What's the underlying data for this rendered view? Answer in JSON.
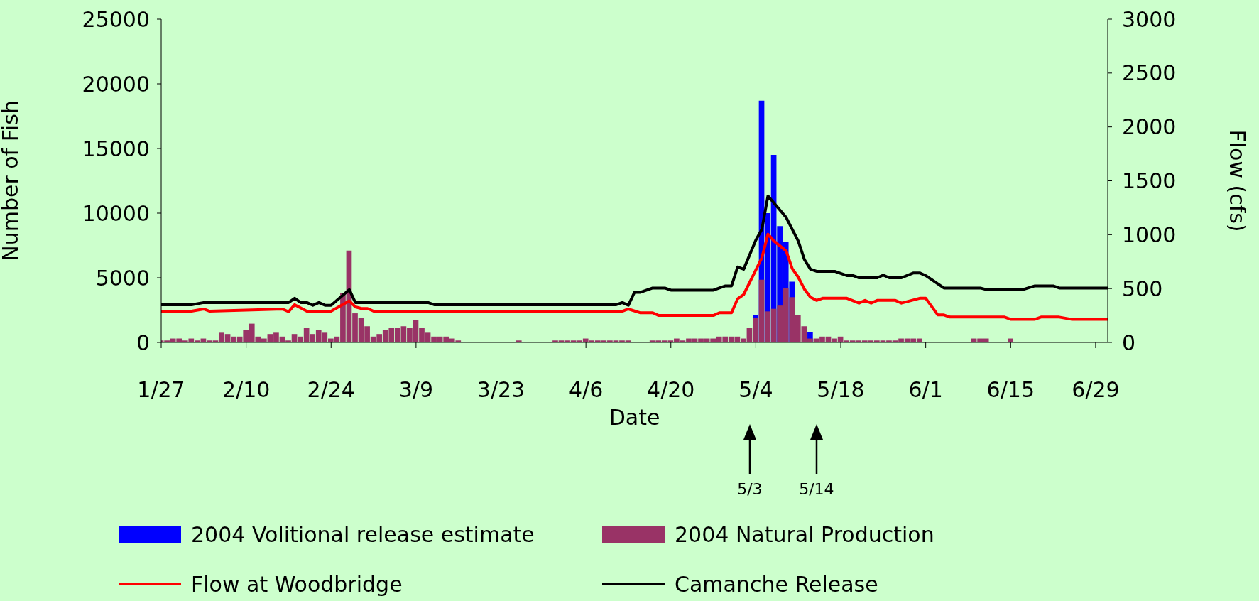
{
  "chart_data": {
    "type": "bar",
    "xlabel": "Date",
    "ylabel": "Number of Fish",
    "y2label": "Flow (cfs)",
    "legend": "bottom",
    "x": [
      "--01-27",
      "--01-28",
      "--01-29",
      "--01-30",
      "--01-31",
      "--02-01",
      "--02-02",
      "--02-03",
      "--02-04",
      "--02-05",
      "--02-06",
      "--02-07",
      "--02-08",
      "--02-09",
      "--02-10",
      "--02-11",
      "--02-12",
      "--02-13",
      "--02-14",
      "--02-15",
      "--02-16",
      "--02-17",
      "--02-18",
      "--02-19",
      "--02-20",
      "--02-21",
      "--02-22",
      "--02-23",
      "--02-24",
      "--02-25",
      "--02-26",
      "--02-27",
      "--02-28",
      "--02-29",
      "--03-01",
      "--03-02",
      "--03-03",
      "--03-04",
      "--03-05",
      "--03-06",
      "--03-07",
      "--03-08",
      "--03-09",
      "--03-10",
      "--03-11",
      "--03-12",
      "--03-13",
      "--03-14",
      "--03-15",
      "--03-16",
      "--03-17",
      "--03-18",
      "--03-19",
      "--03-20",
      "--03-21",
      "--03-22",
      "--03-23",
      "--03-24",
      "--03-25",
      "--03-26",
      "--03-27",
      "--03-28",
      "--03-29",
      "--03-30",
      "--03-31",
      "--04-01",
      "--04-02",
      "--04-03",
      "--04-04",
      "--04-05",
      "--04-06",
      "--04-07",
      "--04-08",
      "--04-09",
      "--04-10",
      "--04-11",
      "--04-12",
      "--04-13",
      "--04-14",
      "--04-15",
      "--04-16",
      "--04-17",
      "--04-18",
      "--04-19",
      "--04-20",
      "--04-21",
      "--04-22",
      "--04-23",
      "--04-24",
      "--04-25",
      "--04-26",
      "--04-27",
      "--04-28",
      "--04-29",
      "--04-30",
      "--05-01",
      "--05-02",
      "--05-03",
      "--05-04",
      "--05-05",
      "--05-06",
      "--05-07",
      "--05-08",
      "--05-09",
      "--05-10",
      "--05-11",
      "--05-12",
      "--05-13",
      "--05-14",
      "--05-15",
      "--05-16",
      "--05-17",
      "--05-18",
      "--05-19",
      "--05-20",
      "--05-21",
      "--05-22",
      "--05-23",
      "--05-24",
      "--05-25",
      "--05-26",
      "--05-27",
      "--05-28",
      "--05-29",
      "--05-30",
      "--05-31",
      "--06-01",
      "--06-02",
      "--06-03",
      "--06-04",
      "--06-05",
      "--06-06",
      "--06-07",
      "--06-08",
      "--06-09",
      "--06-10",
      "--06-11",
      "--06-12",
      "--06-13",
      "--06-14",
      "--06-15",
      "--06-16",
      "--06-17",
      "--06-18",
      "--06-19",
      "--06-20",
      "--06-21",
      "--06-22",
      "--06-23",
      "--06-24",
      "--06-25",
      "--06-26",
      "--06-27",
      "--06-28",
      "--06-29",
      "--06-30",
      "--07-01"
    ],
    "xlim": [
      "--01-27",
      "--07-01"
    ],
    "xticks": [
      {
        "value": "--01-27",
        "label": "1/27"
      },
      {
        "value": "--02-10",
        "label": "2/10"
      },
      {
        "value": "--02-24",
        "label": "2/24"
      },
      {
        "value": "--03-09",
        "label": "3/9"
      },
      {
        "value": "--03-23",
        "label": "3/23"
      },
      {
        "value": "--04-06",
        "label": "4/6"
      },
      {
        "value": "--04-20",
        "label": "4/20"
      },
      {
        "value": "--05-04",
        "label": "5/4"
      },
      {
        "value": "--05-18",
        "label": "5/18"
      },
      {
        "value": "--06-01",
        "label": "6/1"
      },
      {
        "value": "--06-15",
        "label": "6/15"
      },
      {
        "value": "--06-29",
        "label": "6/29"
      }
    ],
    "ylim": [
      0,
      25000
    ],
    "yticks": [
      0,
      5000,
      10000,
      15000,
      20000,
      25000
    ],
    "y2lim": [
      0,
      3000
    ],
    "y2ticks": [
      0,
      500,
      1000,
      1500,
      2000,
      2500,
      3000
    ],
    "series": [
      {
        "name": "2004 Volitional release estimate",
        "color": "#0000ff",
        "values": [
          0,
          0,
          0,
          0,
          0,
          0,
          0,
          0,
          0,
          0,
          0,
          0,
          0,
          0,
          0,
          0,
          0,
          0,
          0,
          0,
          0,
          0,
          0,
          0,
          0,
          0,
          0,
          0,
          0,
          0,
          0,
          0,
          0,
          0,
          0,
          0,
          0,
          0,
          0,
          0,
          0,
          0,
          0,
          0,
          0,
          0,
          0,
          0,
          0,
          0,
          0,
          0,
          0,
          0,
          0,
          0,
          0,
          0,
          0,
          0,
          0,
          0,
          0,
          0,
          0,
          0,
          0,
          0,
          0,
          0,
          0,
          0,
          0,
          0,
          0,
          0,
          0,
          0,
          0,
          0,
          0,
          0,
          0,
          0,
          0,
          0,
          0,
          0,
          0,
          0,
          0,
          0,
          0,
          0,
          0,
          0,
          0,
          0,
          2100,
          18700,
          10000,
          14500,
          9000,
          7800,
          4700,
          0,
          0,
          800,
          0,
          0,
          0,
          0,
          0,
          0,
          0,
          0,
          0,
          0,
          0,
          0,
          0,
          0,
          0,
          0,
          0,
          0,
          0,
          0,
          0,
          0,
          0,
          0,
          0,
          0,
          0,
          0,
          0,
          0,
          0,
          0,
          0,
          0,
          0,
          0,
          0,
          0,
          0,
          0,
          0,
          0,
          0,
          0,
          0,
          0,
          0,
          0,
          0
        ]
      },
      {
        "name": "2004 Natural Production",
        "color": "#993366",
        "values": [
          150,
          150,
          300,
          300,
          150,
          300,
          150,
          300,
          150,
          150,
          750,
          650,
          450,
          450,
          950,
          1450,
          450,
          300,
          650,
          750,
          450,
          150,
          650,
          450,
          1100,
          650,
          950,
          750,
          300,
          450,
          3800,
          7100,
          2250,
          1900,
          1250,
          450,
          650,
          950,
          1100,
          1100,
          1250,
          1100,
          1750,
          1100,
          750,
          450,
          450,
          450,
          300,
          150,
          0,
          0,
          0,
          0,
          0,
          0,
          0,
          0,
          0,
          150,
          0,
          0,
          0,
          0,
          0,
          150,
          150,
          150,
          150,
          150,
          300,
          150,
          150,
          150,
          150,
          150,
          150,
          150,
          0,
          0,
          0,
          150,
          150,
          150,
          150,
          300,
          150,
          300,
          300,
          300,
          300,
          300,
          450,
          450,
          450,
          450,
          300,
          1100,
          1900,
          4850,
          2400,
          2600,
          2850,
          4200,
          3500,
          2100,
          1250,
          300,
          300,
          450,
          450,
          300,
          450,
          150,
          150,
          150,
          150,
          150,
          150,
          150,
          150,
          150,
          300,
          300,
          300,
          300,
          0,
          0,
          0,
          0,
          0,
          0,
          0,
          0,
          300,
          300,
          300,
          0,
          0,
          0,
          300,
          0,
          0,
          0,
          0,
          0,
          0,
          0,
          0,
          0,
          0,
          0,
          0,
          0,
          0,
          0,
          0
        ]
      },
      {
        "type": "line",
        "axis": "y2",
        "name": "Flow at Woodbridge",
        "color": "#ff0000",
        "x": [
          "--01-27",
          "--02-01",
          "--02-03",
          "--02-04",
          "--02-16",
          "--02-17",
          "--02-18",
          "--02-19",
          "--02-20",
          "--02-24",
          "--02-27",
          "--02-28",
          "--02-29",
          "--03-01",
          "--03-02",
          "--04-12",
          "--04-13",
          "--04-15",
          "--04-17",
          "--04-18",
          "--04-27",
          "--04-28",
          "--04-30",
          "--05-01",
          "--05-02",
          "--05-05",
          "--05-06",
          "--05-07",
          "--05-09",
          "--05-10",
          "--05-11",
          "--05-12",
          "--05-13",
          "--05-14",
          "--05-15",
          "--05-19",
          "--05-21",
          "--05-22",
          "--05-23",
          "--05-24",
          "--05-27",
          "--05-28",
          "--05-31",
          "--06-01",
          "--06-03",
          "--06-04",
          "--06-05",
          "--06-14",
          "--06-15",
          "--06-19",
          "--06-20",
          "--06-23",
          "--06-25",
          "--07-01"
        ],
        "values": [
          290,
          290,
          310,
          290,
          310,
          285,
          350,
          320,
          290,
          290,
          385,
          330,
          315,
          315,
          290,
          290,
          310,
          275,
          275,
          250,
          250,
          275,
          275,
          405,
          445,
          785,
          1005,
          940,
          850,
          685,
          605,
          495,
          420,
          390,
          410,
          410,
          365,
          390,
          365,
          390,
          390,
          365,
          410,
          410,
          255,
          255,
          235,
          235,
          215,
          215,
          235,
          235,
          215,
          215
        ]
      },
      {
        "type": "line",
        "axis": "y2",
        "name": "Camanche Release",
        "color": "#000000",
        "x": [
          "--01-27",
          "--02-01",
          "--02-03",
          "--02-17",
          "--02-18",
          "--02-19",
          "--02-20",
          "--02-21",
          "--02-22",
          "--02-23",
          "--02-24",
          "--02-27",
          "--02-28",
          "--03-11",
          "--03-12",
          "--04-11",
          "--04-12",
          "--04-13",
          "--04-14",
          "--04-15",
          "--04-17",
          "--04-19",
          "--04-20",
          "--04-27",
          "--04-29",
          "--04-30",
          "--05-01",
          "--05-02",
          "--05-04",
          "--05-05",
          "--05-06",
          "--05-09",
          "--05-11",
          "--05-12",
          "--05-13",
          "--05-14",
          "--05-17",
          "--05-19",
          "--05-20",
          "--05-21",
          "--05-24",
          "--05-25",
          "--05-26",
          "--05-28",
          "--05-30",
          "--05-31",
          "--06-01",
          "--06-04",
          "--06-10",
          "--06-11",
          "--06-17",
          "--06-19",
          "--06-22",
          "--06-23",
          "--07-01"
        ],
        "values": [
          350,
          350,
          370,
          370,
          410,
          370,
          370,
          345,
          370,
          345,
          345,
          490,
          370,
          370,
          350,
          350,
          370,
          345,
          465,
          465,
          505,
          505,
          485,
          485,
          525,
          525,
          700,
          680,
          950,
          1050,
          1360,
          1160,
          940,
          770,
          680,
          660,
          660,
          620,
          620,
          600,
          600,
          625,
          600,
          600,
          645,
          645,
          620,
          505,
          505,
          490,
          490,
          525,
          525,
          505,
          505
        ]
      }
    ],
    "annotations": [
      "5/3",
      "5/14"
    ]
  }
}
